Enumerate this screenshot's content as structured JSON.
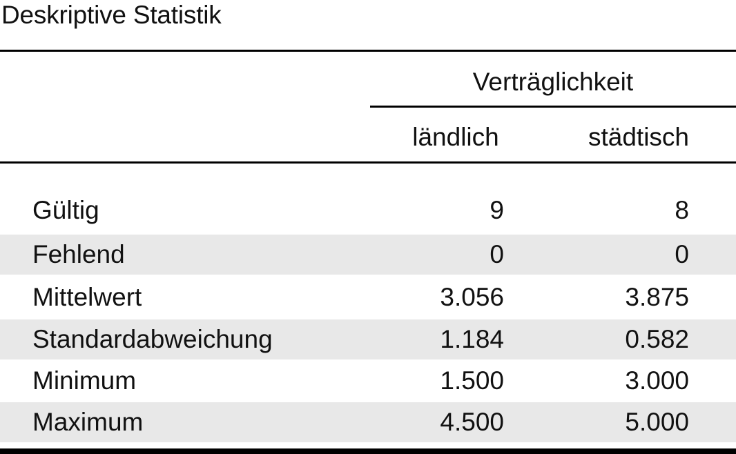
{
  "title": "Deskriptive Statistik",
  "table": {
    "group_header": "Verträglichkeit",
    "columns": [
      "ländlich",
      "städtisch"
    ],
    "rows": [
      {
        "label": "Gültig",
        "values": [
          "9",
          "8"
        ]
      },
      {
        "label": "Fehlend",
        "values": [
          "0",
          "0"
        ]
      },
      {
        "label": "Mittelwert",
        "values": [
          "3.056",
          "3.875"
        ]
      },
      {
        "label": "Standardabweichung",
        "values": [
          "1.184",
          "0.582"
        ]
      },
      {
        "label": "Minimum",
        "values": [
          "1.500",
          "3.000"
        ]
      },
      {
        "label": "Maximum",
        "values": [
          "4.500",
          "5.000"
        ]
      }
    ]
  },
  "colors": {
    "shaded_row": "#e8e8e8",
    "rule": "#000000"
  }
}
